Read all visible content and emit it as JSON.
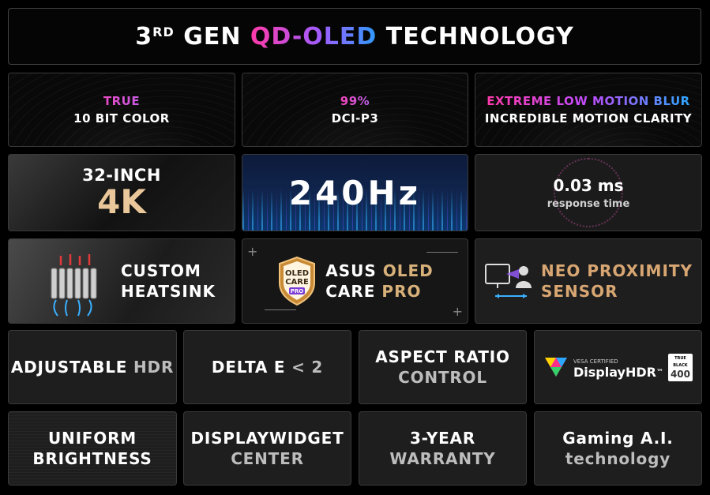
{
  "title": {
    "pre": "3",
    "sup": "RD",
    "gen": " GEN ",
    "qd": "QD-OLED",
    "post": " TECHNOLOGY"
  },
  "row1": [
    {
      "top": "TRUE",
      "bottom": "10 BIT COLOR"
    },
    {
      "top": "99%",
      "bottom": "DCI-P3"
    },
    {
      "top": "EXTREME LOW MOTION BLUR",
      "bottom": "INCREDIBLE MOTION CLARITY"
    }
  ],
  "size": {
    "line1": "32-INCH",
    "line2": "4K"
  },
  "refresh": {
    "value": "240Hz"
  },
  "response": {
    "value": "0.03 ms",
    "label": "response time"
  },
  "heatsink": {
    "line1": "CUSTOM",
    "line2": "HEATSINK"
  },
  "oledcare": {
    "badge1": "OLED",
    "badge2": "CARE",
    "badge3": "PRO",
    "line1a": "ASUS ",
    "line1b": "OLED",
    "line2a": "CARE ",
    "line2b": "PRO"
  },
  "proximity": {
    "line1": "NEO PROXIMITY",
    "line2": "SENSOR"
  },
  "row4": [
    {
      "a": "ADJUSTABLE ",
      "b": "HDR"
    },
    {
      "a": "DELTA E ",
      "b": "< 2"
    },
    {
      "a": "ASPECT RATIO",
      "b": "CONTROL"
    }
  ],
  "vesa": {
    "certified": "VESA CERTIFIED",
    "brand": "DisplayHDR",
    "tm": "™",
    "tb1": "TRUE",
    "tb2": "BLACK",
    "tier": "400"
  },
  "row5": [
    {
      "a": "UNIFORM",
      "b": "BRIGHTNESS"
    },
    {
      "a": "DISPLAYWIDGET",
      "b": "CENTER"
    },
    {
      "a": "3-YEAR",
      "b": "WARRANTY"
    },
    {
      "a": "Gaming A.I.",
      "b": "technology"
    }
  ],
  "colors": {
    "pink": "#ff3aa8",
    "purple": "#a05cff",
    "blue": "#2f9bff",
    "gold": "#d8b07a"
  }
}
